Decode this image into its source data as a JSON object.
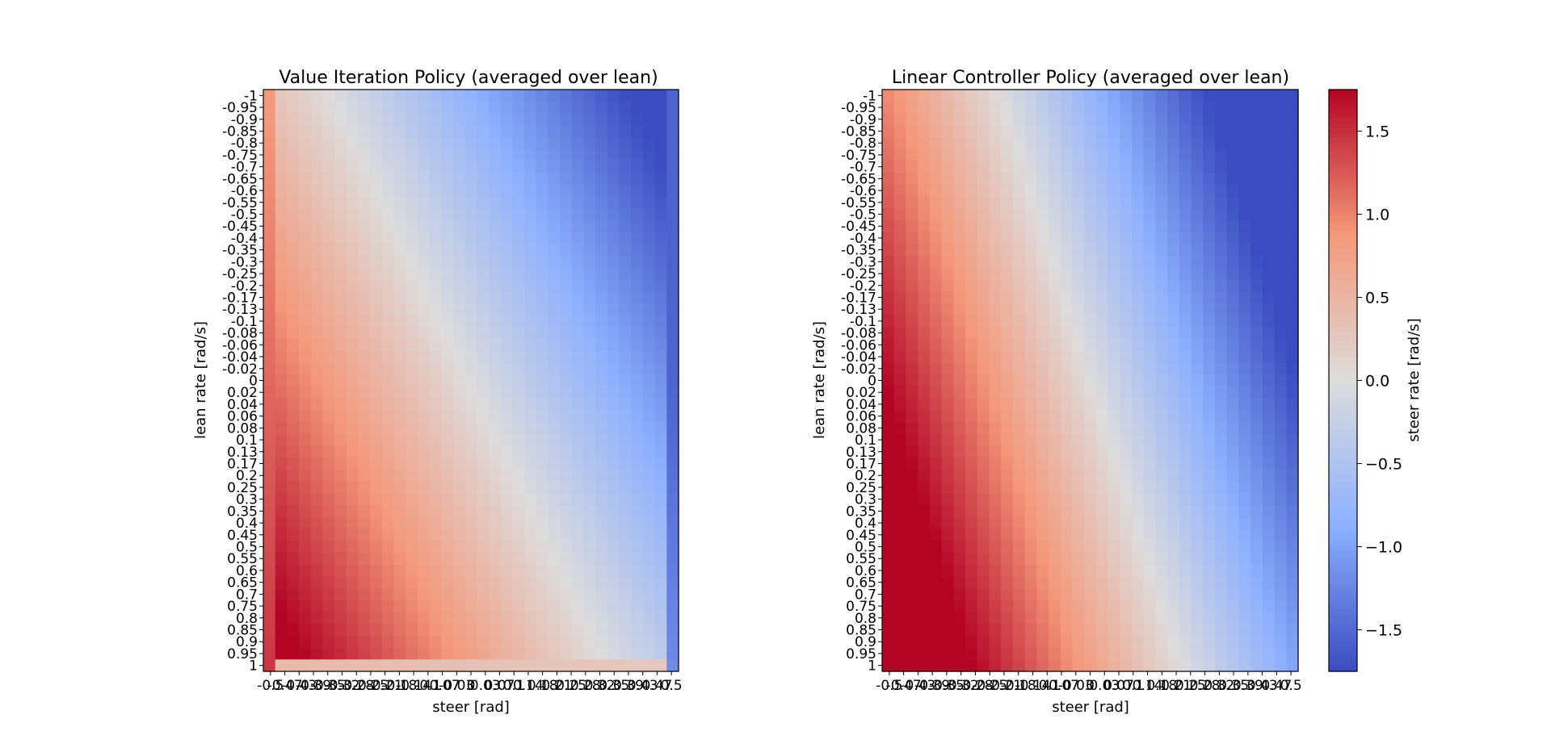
{
  "chart_data": [
    {
      "type": "heatmap",
      "title": "Value Iteration Policy (averaged over lean)",
      "xlabel": "steer [rad]",
      "ylabel": "lean rate [rad/s]",
      "x_ticks": [
        "-0.5",
        "-0.47",
        "-0.43",
        "-0.39",
        "-0.35",
        "-0.32",
        "-0.28",
        "-0.25",
        "-0.21",
        "-0.18",
        "-0.14",
        "-0.1",
        "-0.07",
        "-0.03",
        "0",
        "0.03",
        "0.07",
        "0.1",
        "0.14",
        "0.18",
        "0.21",
        "0.25",
        "0.28",
        "0.32",
        "0.35",
        "0.39",
        "0.43",
        "0.47",
        "0.5"
      ],
      "y_ticks": [
        "-1",
        "-0.95",
        "-0.9",
        "-0.85",
        "-0.8",
        "-0.75",
        "-0.7",
        "-0.65",
        "-0.6",
        "-0.55",
        "-0.5",
        "-0.45",
        "-0.4",
        "-0.35",
        "-0.3",
        "-0.25",
        "-0.2",
        "-0.17",
        "-0.13",
        "-0.1",
        "-0.08",
        "-0.06",
        "-0.04",
        "-0.02",
        "0",
        "0.02",
        "0.04",
        "0.06",
        "0.08",
        "0.1",
        "0.13",
        "0.17",
        "0.2",
        "0.25",
        "0.3",
        "0.35",
        "0.4",
        "0.45",
        "0.5",
        "0.55",
        "0.6",
        "0.65",
        "0.7",
        "0.75",
        "0.8",
        "0.85",
        "0.9",
        "0.95",
        "1"
      ],
      "model": {
        "kind": "value_iteration",
        "steer_coef": -2.6,
        "rate_coef": 0.9,
        "left_column_value": 1.15,
        "right_column_value": -1.45,
        "bottom_row_value": 0.45
      }
    },
    {
      "type": "heatmap",
      "title": "Linear Controller Policy (averaged over lean)",
      "xlabel": "steer [rad]",
      "ylabel": "lean rate [rad/s]",
      "x_ticks": [
        "-0.5",
        "-0.47",
        "-0.43",
        "-0.39",
        "-0.35",
        "-0.32",
        "-0.28",
        "-0.25",
        "-0.21",
        "-0.18",
        "-0.14",
        "-0.1",
        "-0.07",
        "-0.03",
        "0",
        "0.03",
        "0.07",
        "0.1",
        "0.14",
        "0.18",
        "0.21",
        "0.25",
        "0.28",
        "0.32",
        "0.35",
        "0.39",
        "0.43",
        "0.47",
        "0.5"
      ],
      "y_ticks": [
        "-1",
        "-0.95",
        "-0.9",
        "-0.85",
        "-0.8",
        "-0.75",
        "-0.7",
        "-0.65",
        "-0.6",
        "-0.55",
        "-0.5",
        "-0.45",
        "-0.4",
        "-0.35",
        "-0.3",
        "-0.25",
        "-0.2",
        "-0.17",
        "-0.13",
        "-0.1",
        "-0.08",
        "-0.06",
        "-0.04",
        "-0.02",
        "0",
        "0.02",
        "0.04",
        "0.06",
        "0.08",
        "0.1",
        "0.13",
        "0.17",
        "0.2",
        "0.25",
        "0.3",
        "0.35",
        "0.4",
        "0.45",
        "0.5",
        "0.55",
        "0.6",
        "0.65",
        "0.7",
        "0.75",
        "0.8",
        "0.85",
        "0.9",
        "0.95",
        "1"
      ],
      "model": {
        "kind": "linear",
        "steer_coef": -2.0,
        "rate_coef": 0.8
      }
    }
  ],
  "colorbar": {
    "label": "steer rate [rad/s]",
    "vmin": -1.75,
    "vmax": 1.75,
    "colormap": "coolwarm",
    "ticks": [
      1.5,
      1.0,
      0.5,
      0.0,
      -0.5,
      -1.0,
      -1.5
    ],
    "tick_labels": [
      "1.5",
      "1.0",
      "0.5",
      "0.0",
      "−0.5",
      "−1.0",
      "−1.5"
    ]
  }
}
